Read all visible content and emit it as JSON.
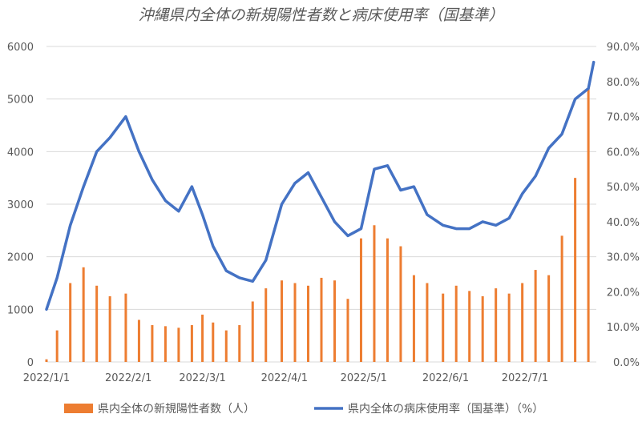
{
  "chart_data": {
    "type": "bar+line",
    "title": "沖縄県内全体の新規陽性者数と病床使用率（国基準）",
    "x_ticks": [
      "2022/1/1",
      "2022/2/1",
      "2022/3/1",
      "2022/4/1",
      "2022/5/1",
      "2022/6/1",
      "2022/7/1"
    ],
    "y_left": {
      "ylim": [
        0,
        6000
      ],
      "ticks": [
        "0",
        "1000",
        "2000",
        "3000",
        "4000",
        "5000",
        "6000"
      ]
    },
    "y_right": {
      "ylim": [
        0,
        90
      ],
      "ticks": [
        "0.0%",
        "10.0%",
        "20.0%",
        "30.0%",
        "40.0%",
        "50.0%",
        "60.0%",
        "70.0%",
        "80.0%",
        "90.0%"
      ]
    },
    "grid": true,
    "legend_position": "bottom",
    "series": [
      {
        "name": "県内全体の新規陽性者数（人）",
        "kind": "bar",
        "axis": "left",
        "color": "#ED7D31",
        "x": [
          "2022-01-01",
          "2022-01-05",
          "2022-01-10",
          "2022-01-15",
          "2022-01-20",
          "2022-01-25",
          "2022-01-31",
          "2022-02-05",
          "2022-02-10",
          "2022-02-15",
          "2022-02-20",
          "2022-02-25",
          "2022-03-01",
          "2022-03-05",
          "2022-03-10",
          "2022-03-15",
          "2022-03-20",
          "2022-03-25",
          "2022-03-31",
          "2022-04-05",
          "2022-04-10",
          "2022-04-15",
          "2022-04-20",
          "2022-04-25",
          "2022-04-30",
          "2022-05-05",
          "2022-05-10",
          "2022-05-15",
          "2022-05-20",
          "2022-05-25",
          "2022-05-31",
          "2022-06-05",
          "2022-06-10",
          "2022-06-15",
          "2022-06-20",
          "2022-06-25",
          "2022-06-30",
          "2022-07-05",
          "2022-07-10",
          "2022-07-15",
          "2022-07-20",
          "2022-07-25"
        ],
        "values": [
          50,
          600,
          1500,
          1800,
          1450,
          1250,
          1300,
          800,
          700,
          680,
          650,
          700,
          900,
          750,
          600,
          700,
          1150,
          1400,
          1550,
          1500,
          1450,
          1600,
          1550,
          1200,
          2350,
          2600,
          2350,
          2200,
          1650,
          1500,
          1300,
          1450,
          1350,
          1250,
          1400,
          1300,
          1500,
          1750,
          1650,
          2400,
          3500,
          5200
        ]
      },
      {
        "name": "県内全体の病床使用率（国基準）（%）",
        "kind": "line",
        "axis": "right",
        "color": "#4472C4",
        "x": [
          "2022-01-01",
          "2022-01-05",
          "2022-01-10",
          "2022-01-15",
          "2022-01-20",
          "2022-01-25",
          "2022-01-31",
          "2022-02-05",
          "2022-02-10",
          "2022-02-15",
          "2022-02-20",
          "2022-02-25",
          "2022-03-01",
          "2022-03-05",
          "2022-03-10",
          "2022-03-15",
          "2022-03-20",
          "2022-03-25",
          "2022-03-31",
          "2022-04-05",
          "2022-04-10",
          "2022-04-15",
          "2022-04-20",
          "2022-04-25",
          "2022-04-30",
          "2022-05-05",
          "2022-05-10",
          "2022-05-15",
          "2022-05-20",
          "2022-05-25",
          "2022-05-31",
          "2022-06-05",
          "2022-06-10",
          "2022-06-15",
          "2022-06-20",
          "2022-06-25",
          "2022-06-30",
          "2022-07-05",
          "2022-07-10",
          "2022-07-15",
          "2022-07-20",
          "2022-07-25",
          "2022-07-27"
        ],
        "values": [
          15,
          24,
          39,
          50,
          60,
          64,
          70,
          60,
          52,
          46,
          43,
          50,
          42,
          33,
          26,
          24,
          23,
          29,
          45,
          51,
          54,
          47,
          40,
          36,
          38,
          55,
          56,
          49,
          50,
          42,
          39,
          38,
          38,
          40,
          39,
          41,
          48,
          53,
          61,
          65,
          75,
          78,
          85.5
        ]
      }
    ]
  }
}
